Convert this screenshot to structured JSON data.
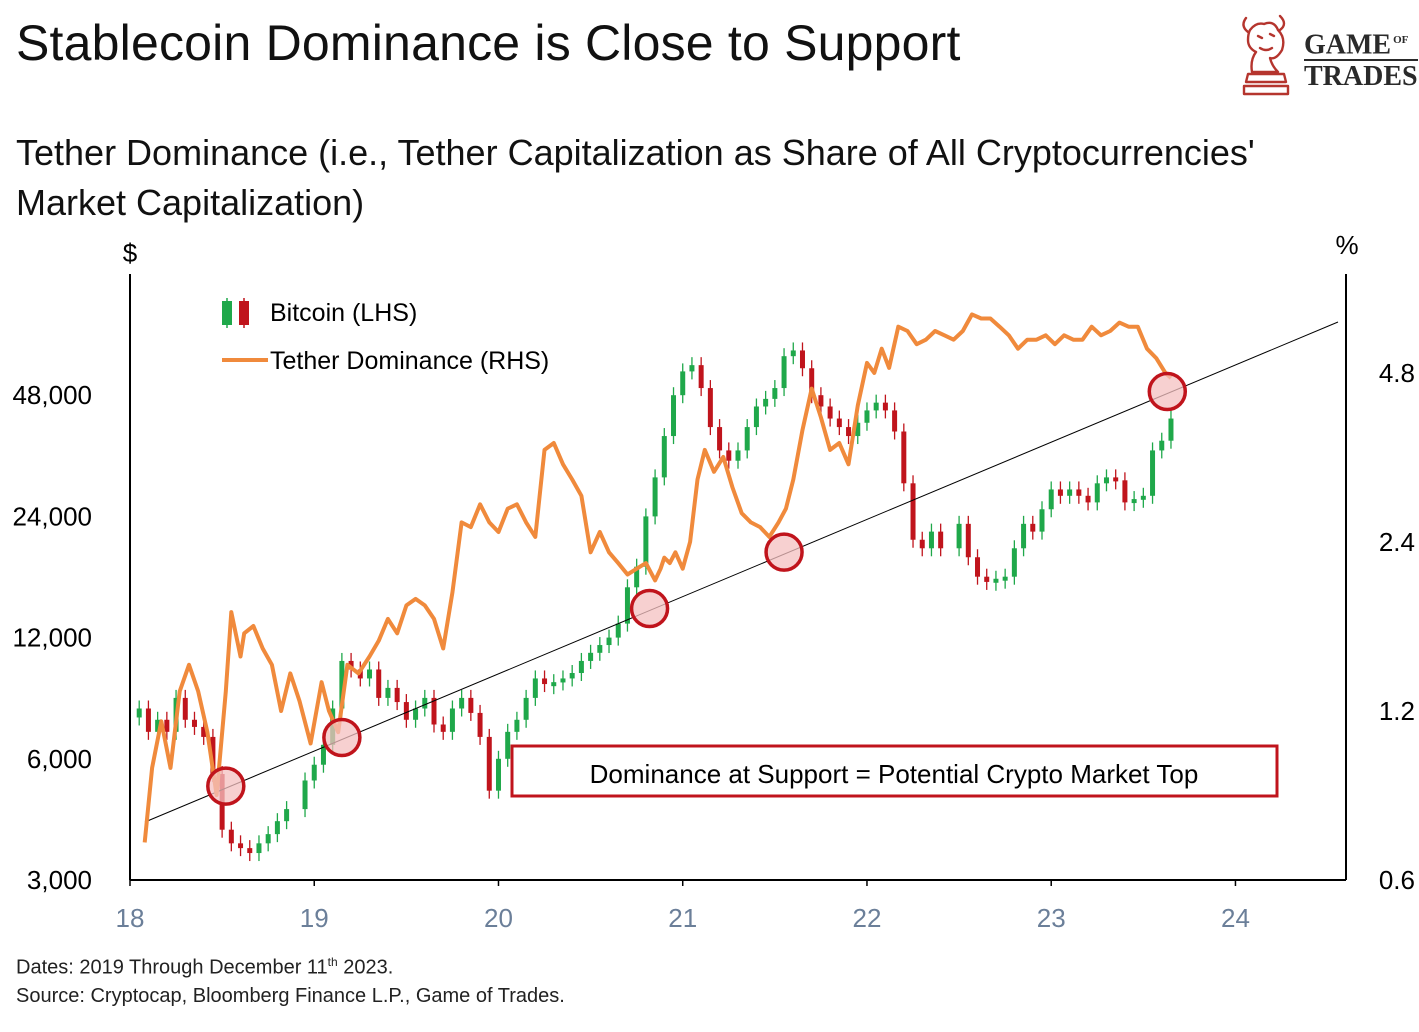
{
  "title": "Stablecoin Dominance is Close to Support",
  "subtitle": "Tether Dominance (i.e., Tether Capitalization as Share of All Cryptocurrencies' Market Capitalization)",
  "logo": {
    "line1": "GAME",
    "line1_small": "OF",
    "line2": "TRADES"
  },
  "footer": {
    "dates_prefix": "Dates: 2019 Through December 11",
    "dates_sup": "th",
    "dates_suffix": " 2023.",
    "source": "Source: Cryptocap, Bloomberg Finance L.P., Game of Trades."
  },
  "annotation": "Dominance at Support = Potential Crypto Market Top",
  "colors": {
    "tether": "#f08a3c",
    "up": "#1fa84a",
    "down": "#c0141c",
    "circle": "#c0141c",
    "circle_fill": "#f4c0c0",
    "box": "#c0141c",
    "trend": "#000000"
  },
  "chart_data": {
    "type": "line",
    "title": "Tether Dominance (i.e., Tether Capitalization as Share of All Cryptocurrencies' Market Capitalization)",
    "left_axis_unit": "$",
    "right_axis_unit": "%",
    "x_ticks": [
      "18",
      "19",
      "20",
      "21",
      "22",
      "23",
      "24"
    ],
    "left_ticks": [
      "3,000",
      "6,000",
      "12,000",
      "24,000",
      "48,000"
    ],
    "right_ticks": [
      "0.6",
      "1.2",
      "2.4",
      "4.8"
    ],
    "xlim": [
      2018,
      2024.6
    ],
    "ylim_left_log2": [
      3000,
      96000
    ],
    "ylim_right_log2": [
      0.6,
      7.2
    ],
    "legend": [
      {
        "name": "Bitcoin (LHS)",
        "kind": "candle"
      },
      {
        "name": "Tether Dominance (RHS)",
        "kind": "line"
      }
    ],
    "series": [
      {
        "name": "Tether Dominance (RHS)",
        "axis": "right",
        "x": [
          2018.08,
          2018.12,
          2018.17,
          2018.22,
          2018.27,
          2018.32,
          2018.37,
          2018.42,
          2018.47,
          2018.52,
          2018.55,
          2018.6,
          2018.62,
          2018.67,
          2018.72,
          2018.77,
          2018.82,
          2018.87,
          2018.92,
          2018.98,
          2019.04,
          2019.08,
          2019.13,
          2019.18,
          2019.24,
          2019.3,
          2019.35,
          2019.4,
          2019.45,
          2019.5,
          2019.55,
          2019.6,
          2019.65,
          2019.7,
          2019.75,
          2019.8,
          2019.85,
          2019.9,
          2019.95,
          2020.0,
          2020.05,
          2020.1,
          2020.15,
          2020.2,
          2020.25,
          2020.3,
          2020.35,
          2020.4,
          2020.45,
          2020.5,
          2020.55,
          2020.6,
          2020.65,
          2020.7,
          2020.75,
          2020.8,
          2020.85,
          2020.88,
          2020.9,
          2020.93,
          2020.96,
          2021.0,
          2021.04,
          2021.08,
          2021.12,
          2021.17,
          2021.22,
          2021.27,
          2021.32,
          2021.37,
          2021.42,
          2021.47,
          2021.52,
          2021.56,
          2021.6,
          2021.65,
          2021.7,
          2021.75,
          2021.8,
          2021.85,
          2021.9,
          2021.95,
          2022.0,
          2022.04,
          2022.08,
          2022.12,
          2022.17,
          2022.22,
          2022.27,
          2022.32,
          2022.37,
          2022.42,
          2022.47,
          2022.52,
          2022.57,
          2022.62,
          2022.67,
          2022.72,
          2022.77,
          2022.82,
          2022.87,
          2022.92,
          2022.97,
          2023.02,
          2023.07,
          2023.12,
          2023.17,
          2023.22,
          2023.27,
          2023.32,
          2023.37,
          2023.42,
          2023.47,
          2023.52,
          2023.57,
          2023.62,
          2023.65
        ],
        "values": [
          0.7,
          0.95,
          1.15,
          0.95,
          1.3,
          1.45,
          1.3,
          1.1,
          0.85,
          1.3,
          1.8,
          1.5,
          1.65,
          1.7,
          1.55,
          1.45,
          1.2,
          1.4,
          1.25,
          1.05,
          1.35,
          1.2,
          1.1,
          1.45,
          1.4,
          1.5,
          1.6,
          1.75,
          1.65,
          1.85,
          1.9,
          1.85,
          1.75,
          1.55,
          1.95,
          2.6,
          2.55,
          2.8,
          2.6,
          2.5,
          2.75,
          2.8,
          2.6,
          2.45,
          3.5,
          3.6,
          3.3,
          3.1,
          2.9,
          2.3,
          2.5,
          2.3,
          2.2,
          2.1,
          2.15,
          2.2,
          2.05,
          2.15,
          2.25,
          2.2,
          2.3,
          2.15,
          2.4,
          3.1,
          3.5,
          3.2,
          3.4,
          3.0,
          2.7,
          2.6,
          2.55,
          2.45,
          2.6,
          2.75,
          3.1,
          3.8,
          4.5,
          4.0,
          3.5,
          3.6,
          3.3,
          4.2,
          5.0,
          4.8,
          5.3,
          4.9,
          5.8,
          5.7,
          5.4,
          5.5,
          5.7,
          5.6,
          5.5,
          5.7,
          6.1,
          6.0,
          6.0,
          5.8,
          5.6,
          5.3,
          5.5,
          5.5,
          5.6,
          5.4,
          5.6,
          5.5,
          5.5,
          5.8,
          5.6,
          5.7,
          5.9,
          5.8,
          5.8,
          5.3,
          5.1,
          4.8,
          4.7
        ]
      },
      {
        "name": "Bitcoin (LHS)",
        "axis": "left",
        "kind": "candle",
        "x": [
          2018.05,
          2018.1,
          2018.15,
          2018.2,
          2018.25,
          2018.3,
          2018.35,
          2018.4,
          2018.45,
          2018.5,
          2018.55,
          2018.6,
          2018.65,
          2018.7,
          2018.75,
          2018.8,
          2018.85,
          2018.95,
          2019.0,
          2019.05,
          2019.1,
          2019.15,
          2019.2,
          2019.25,
          2019.3,
          2019.35,
          2019.4,
          2019.45,
          2019.5,
          2019.55,
          2019.6,
          2019.65,
          2019.7,
          2019.75,
          2019.8,
          2019.85,
          2019.9,
          2019.95,
          2020.0,
          2020.05,
          2020.1,
          2020.15,
          2020.2,
          2020.25,
          2020.3,
          2020.35,
          2020.4,
          2020.45,
          2020.5,
          2020.55,
          2020.6,
          2020.65,
          2020.7,
          2020.75,
          2020.8,
          2020.85,
          2020.9,
          2020.95,
          2021.0,
          2021.05,
          2021.1,
          2021.15,
          2021.2,
          2021.25,
          2021.3,
          2021.35,
          2021.4,
          2021.45,
          2021.5,
          2021.55,
          2021.6,
          2021.65,
          2021.7,
          2021.75,
          2021.8,
          2021.85,
          2021.9,
          2021.95,
          2022.0,
          2022.05,
          2022.1,
          2022.15,
          2022.2,
          2022.25,
          2022.3,
          2022.35,
          2022.4,
          2022.5,
          2022.55,
          2022.6,
          2022.65,
          2022.7,
          2022.75,
          2022.8,
          2022.85,
          2022.9,
          2022.95,
          2023.0,
          2023.05,
          2023.1,
          2023.15,
          2023.2,
          2023.25,
          2023.3,
          2023.35,
          2023.4,
          2023.45,
          2023.5,
          2023.55,
          2023.6,
          2023.65
        ],
        "values": [
          8000,
          7000,
          7500,
          7000,
          8500,
          7500,
          7200,
          6800,
          5500,
          4000,
          3700,
          3600,
          3500,
          3700,
          3900,
          4200,
          4500,
          5300,
          5800,
          6500,
          8000,
          10500,
          10000,
          9500,
          10000,
          8500,
          9000,
          8300,
          7500,
          8000,
          8500,
          7300,
          7000,
          8000,
          8500,
          7800,
          6800,
          5000,
          6000,
          7000,
          7500,
          8500,
          9500,
          9200,
          9300,
          9500,
          9800,
          10500,
          11000,
          11500,
          12000,
          13000,
          16000,
          18000,
          24000,
          30000,
          38000,
          48000,
          55000,
          57000,
          50000,
          40000,
          35000,
          33000,
          35000,
          40000,
          45000,
          47000,
          50000,
          60000,
          62000,
          56000,
          48000,
          45000,
          42000,
          40000,
          38000,
          41000,
          44000,
          46000,
          44000,
          39000,
          29000,
          21000,
          20000,
          22000,
          20000,
          23000,
          19000,
          17000,
          16500,
          16800,
          17000,
          20000,
          23000,
          22000,
          25000,
          28000,
          27000,
          28000,
          27000,
          26000,
          29000,
          30000,
          29500,
          26000,
          26500,
          27000,
          35000,
          37000,
          42000
        ]
      }
    ],
    "support_touches_x": [
      2018.52,
      2019.15,
      2020.82,
      2021.55,
      2023.63
    ]
  }
}
